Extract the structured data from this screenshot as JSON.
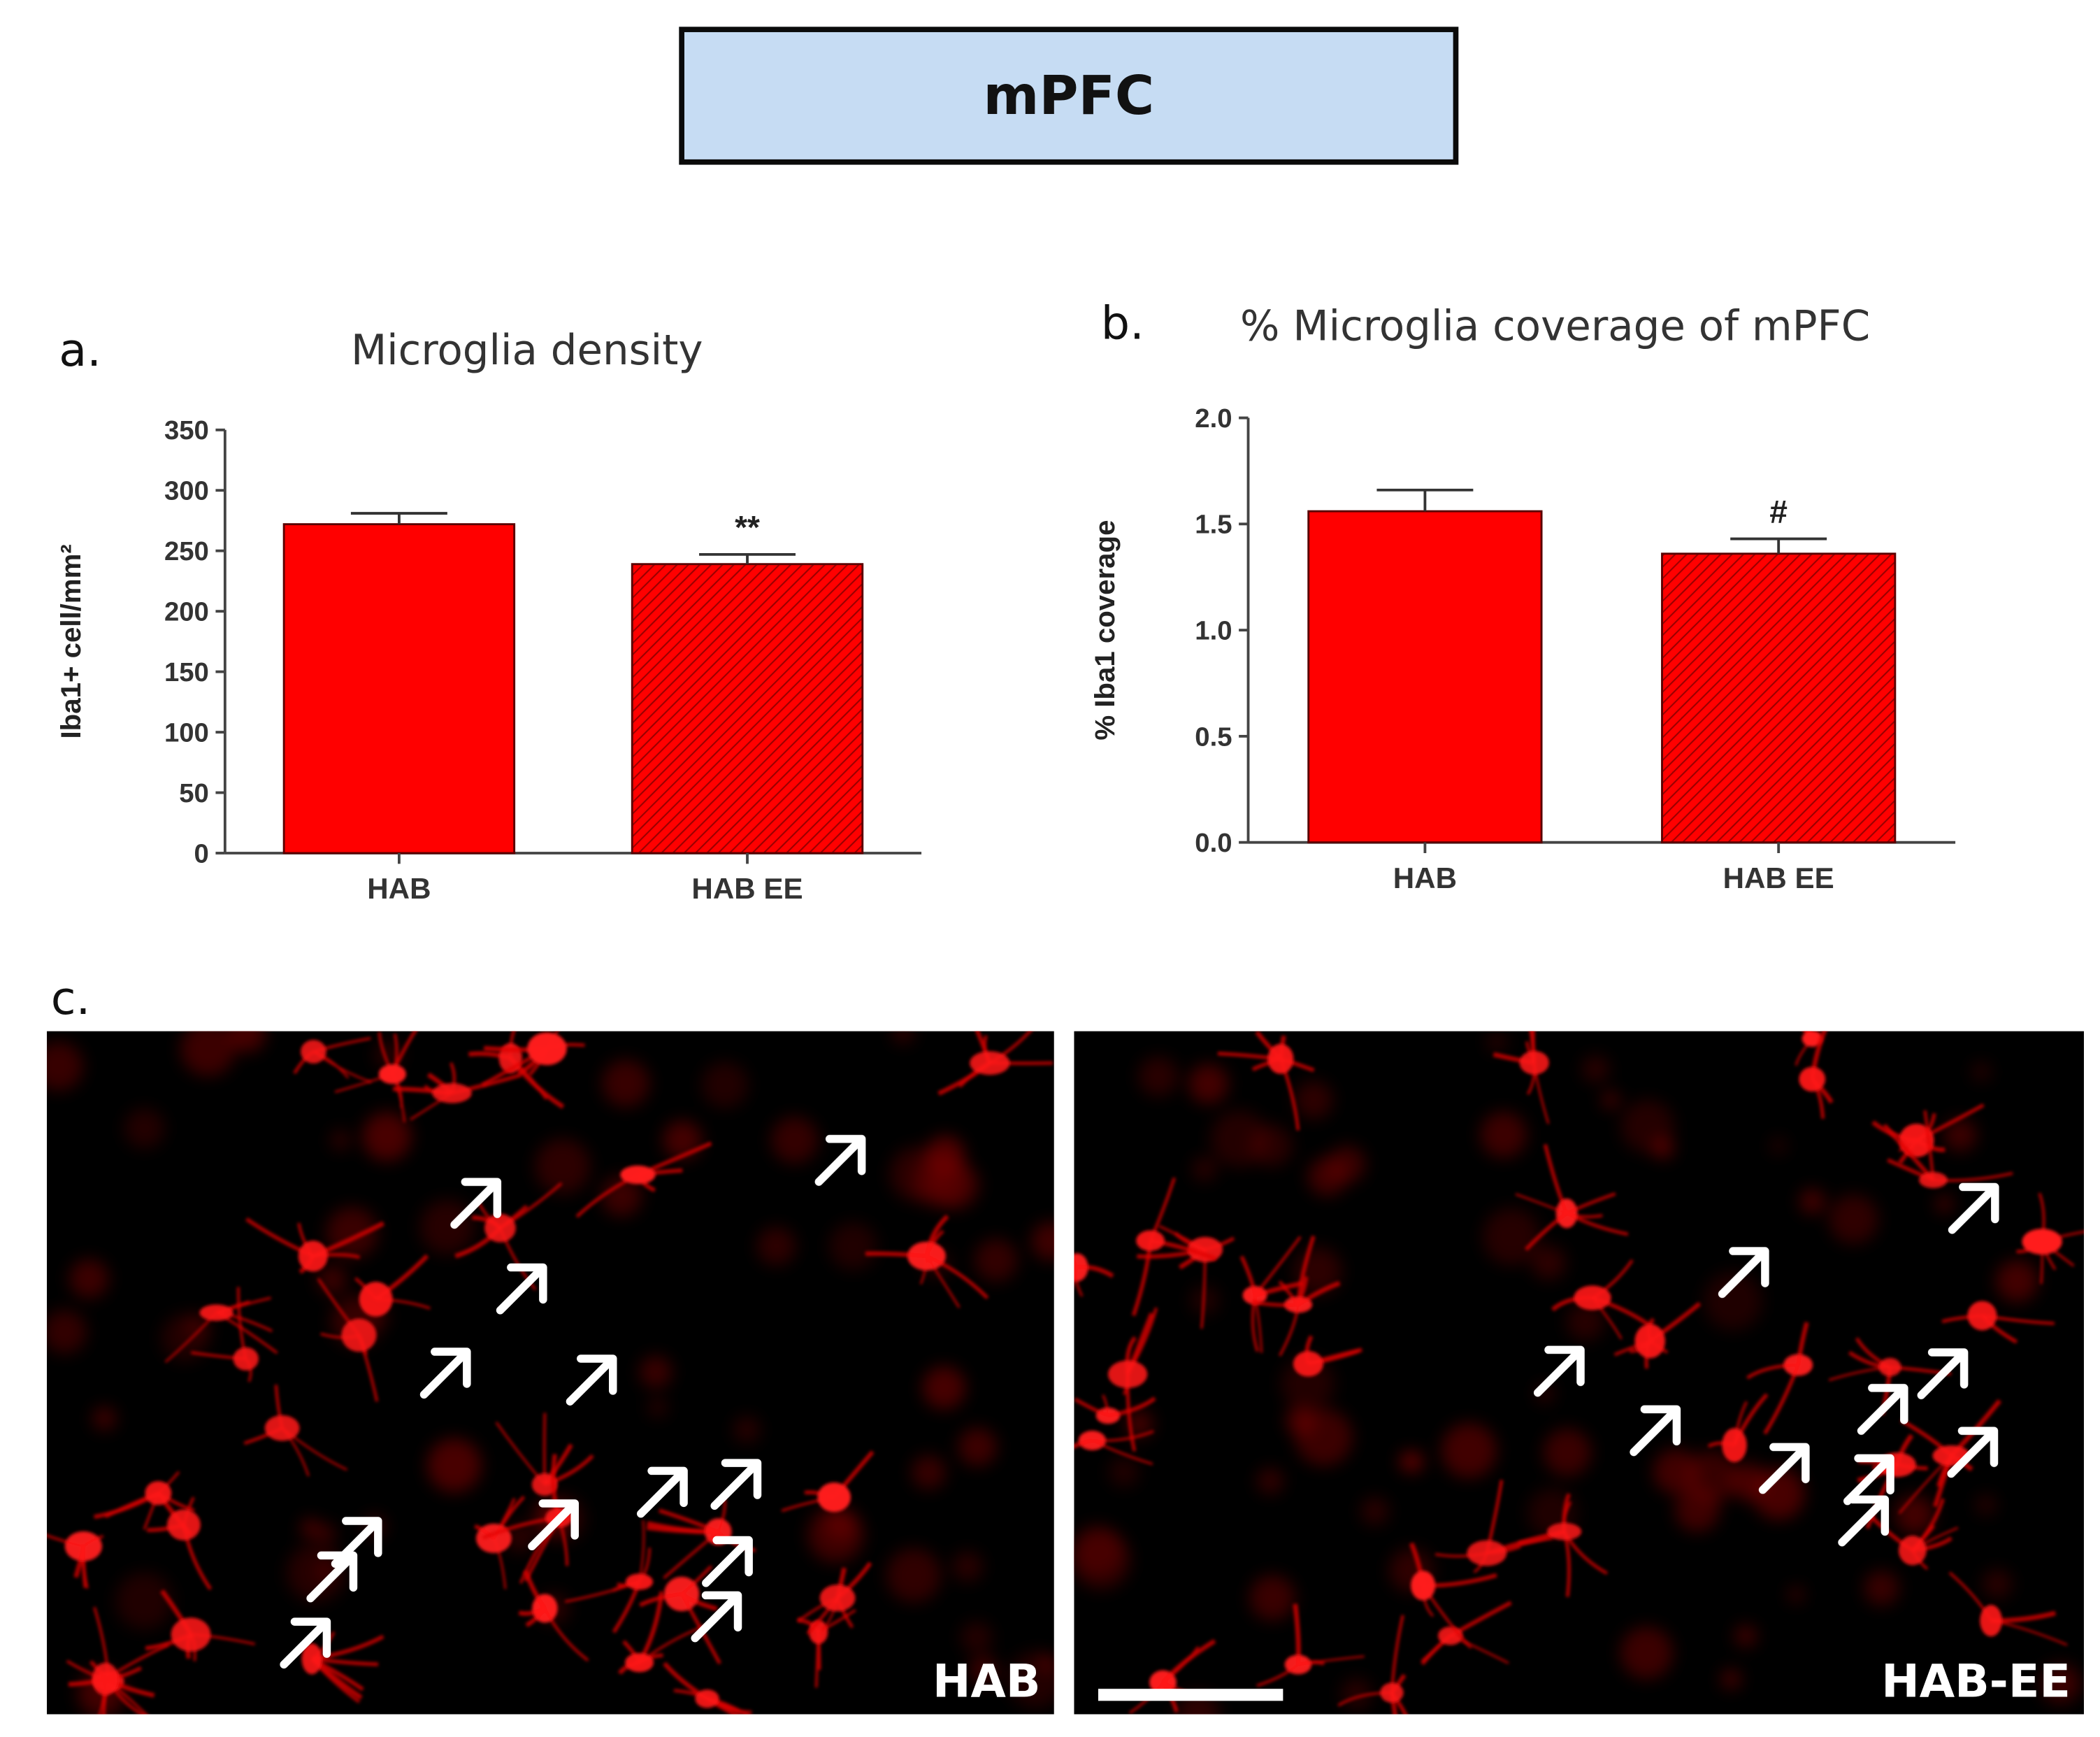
{
  "header": {
    "title": "mPFC"
  },
  "panels": {
    "a": {
      "label": "a."
    },
    "b": {
      "label": "b."
    },
    "c": {
      "label": "c."
    }
  },
  "chart_data": [
    {
      "type": "bar",
      "title": "Microglia density",
      "ylabel": "Iba1+ cell/mm²",
      "categories": [
        "HAB",
        "HAB EE"
      ],
      "values": [
        272,
        239
      ],
      "errors": [
        9,
        8
      ],
      "annotations": [
        "",
        "**"
      ],
      "ylim": [
        0,
        350
      ],
      "yticks": [
        0,
        50,
        100,
        150,
        200,
        250,
        300,
        350
      ],
      "ytick_labels": [
        "0",
        "50",
        "100",
        "150",
        "200",
        "250",
        "300",
        "350"
      ],
      "hatched": [
        false,
        true
      ],
      "color": "#ff0000",
      "grid": false
    },
    {
      "type": "bar",
      "title": "% Microglia coverage of mPFC",
      "ylabel": "% Iba1 coverage",
      "categories": [
        "HAB",
        "HAB EE"
      ],
      "values": [
        1.56,
        1.36
      ],
      "errors": [
        0.1,
        0.07
      ],
      "annotations": [
        "",
        "#"
      ],
      "ylim": [
        0,
        2.0
      ],
      "yticks": [
        0,
        0.5,
        1.0,
        1.5,
        2.0
      ],
      "ytick_labels": [
        "0.0",
        "0.5",
        "1.0",
        "1.5",
        "2.0"
      ],
      "hatched": [
        false,
        true
      ],
      "color": "#ff0000",
      "grid": false
    }
  ],
  "images": {
    "left": {
      "label": "HAB",
      "arrow_count": 13
    },
    "right": {
      "label": "HAB-EE",
      "arrow_count": 10
    }
  },
  "colors": {
    "bar": "#ff0000",
    "bar_hatched": "#d01010",
    "title_box": "#c6dcf3"
  }
}
